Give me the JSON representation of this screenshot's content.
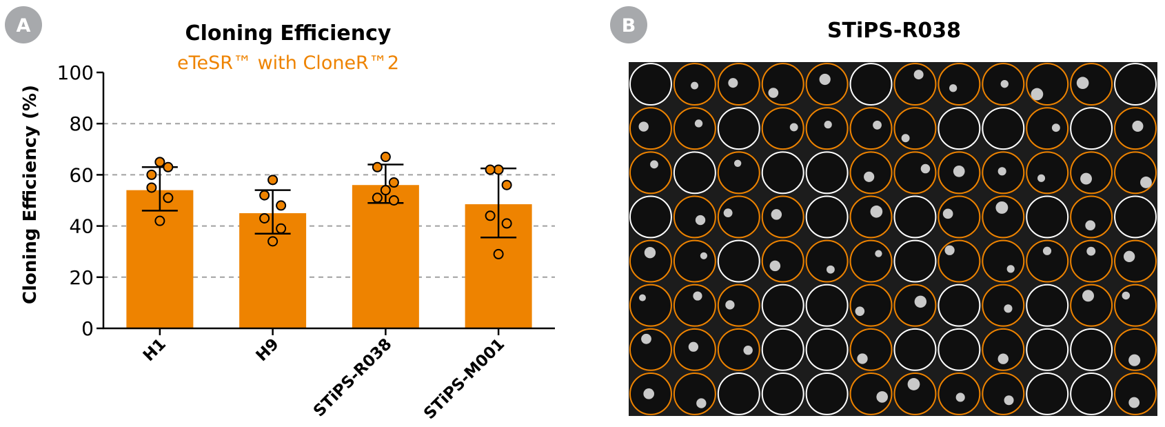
{
  "colors": {
    "accent": "#ee8300",
    "badge": "#a7a9ac",
    "grid": "#a0a0a0",
    "plate_bg": "#1c1c1c",
    "well_empty": "#ffffff",
    "well_colony": "#ee8300"
  },
  "panel_a": {
    "badge": "A",
    "chart_data": {
      "type": "bar",
      "title": "Cloning Efficiency",
      "subtitle": "eTeSR™ with CloneR™2",
      "xlabel": "",
      "ylabel": "Cloning Efficiency  (%)",
      "ylim": [
        0,
        100
      ],
      "yticks": [
        0,
        20,
        40,
        60,
        80,
        100
      ],
      "ytick_labels": [
        "0",
        "20",
        "40",
        "60",
        "80",
        "100"
      ],
      "grid": "dashed horizontal at 20, 40, 60, 80",
      "categories": [
        "H1",
        "H9",
        "STiPS-R038",
        "STiPS-M001"
      ],
      "values": [
        54,
        45,
        56,
        48.5
      ],
      "error_low": [
        46,
        37,
        49,
        35.5
      ],
      "error_high": [
        63,
        54,
        64,
        62.5
      ],
      "points": [
        [
          65,
          60,
          63,
          55,
          51,
          42
        ],
        [
          58,
          52,
          48,
          43,
          39,
          34
        ],
        [
          67,
          63,
          57,
          51,
          50,
          54
        ],
        [
          62,
          62,
          56,
          44,
          41,
          29
        ]
      ]
    }
  },
  "panel_b": {
    "badge": "B",
    "title": "STiPS-R038",
    "plate": {
      "rows": 8,
      "cols": 12,
      "legend": "W = well without colony (white ring), O = well with colony (orange ring)",
      "wells": [
        "WOOOOWOOOOOW",
        "OOWOOOOWWOWO",
        "OWOWWOOOOOOO",
        "WOOOWOWOOWOW",
        "OOWOOOWOOOOO",
        "OOOWWOOWOWOO",
        "OOOWWOWWOWWO",
        "OOWWWOOOOWWO"
      ]
    }
  }
}
